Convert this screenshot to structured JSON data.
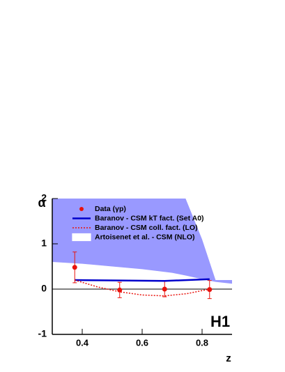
{
  "chart_data": {
    "type": "line",
    "x_label": "z",
    "y_label": "α",
    "annotation": "H1",
    "xlim": [
      0.3,
      0.9
    ],
    "ylim": [
      -1,
      2
    ],
    "xticks": [
      0.4,
      0.6,
      0.8
    ],
    "yticks": [
      -1,
      0,
      1,
      2
    ],
    "series": [
      {
        "name": "Data (γp)",
        "kind": "points",
        "color": "#e8120c",
        "x": [
          0.375,
          0.525,
          0.675,
          0.825
        ],
        "values": [
          0.48,
          -0.02,
          0.0,
          -0.01
        ],
        "errors": [
          0.34,
          0.17,
          0.17,
          0.2
        ]
      },
      {
        "name": "Baranov - CSM kT fact. (Set A0)",
        "kind": "line",
        "color": "#0000cc",
        "x": [
          0.375,
          0.525,
          0.675,
          0.825
        ],
        "values": [
          0.2,
          0.19,
          0.18,
          0.22
        ]
      },
      {
        "name": "Baranov - CSM coll. fact. (LO)",
        "kind": "dotted",
        "color": "#e8120c",
        "x": [
          0.375,
          0.45,
          0.525,
          0.6,
          0.675,
          0.75,
          0.825
        ],
        "values": [
          0.2,
          0.05,
          -0.06,
          -0.13,
          -0.15,
          -0.1,
          0.0
        ]
      },
      {
        "name": "Artoisenet et al. - CSM (NLO)",
        "kind": "band",
        "color": "#9999ff",
        "x": [
          0.3,
          0.4,
          0.5,
          0.6,
          0.7,
          0.745,
          0.8,
          0.845,
          0.9
        ],
        "upper": [
          2,
          2,
          2,
          2,
          2,
          2,
          1.1,
          0.2,
          0.2
        ],
        "lower": [
          0.6,
          0.56,
          0.5,
          0.44,
          0.36,
          0.3,
          0.22,
          0.16,
          0.12
        ]
      }
    ]
  }
}
